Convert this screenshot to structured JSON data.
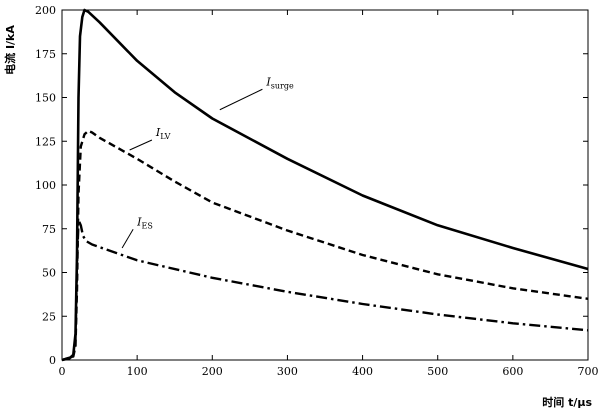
{
  "chart_data": {
    "type": "line",
    "xlabel": "时间 t/μs",
    "ylabel": "电流 I/kA",
    "xlim": [
      0,
      700
    ],
    "ylim": [
      0,
      200
    ],
    "xticks": [
      0,
      100,
      200,
      300,
      400,
      500,
      600,
      700
    ],
    "yticks": [
      0,
      25,
      50,
      75,
      100,
      125,
      150,
      175,
      200
    ],
    "grid": false,
    "legend": "none",
    "series": [
      {
        "name": "I_surge",
        "label_main": "I",
        "label_sub": "surge",
        "line_style": "solid",
        "color": "#000000",
        "x": [
          0,
          10,
          15,
          18,
          20,
          22,
          24,
          27,
          30,
          35,
          50,
          100,
          150,
          200,
          300,
          400,
          500,
          600,
          700
        ],
        "y": [
          0,
          1,
          3,
          15,
          60,
          150,
          185,
          196,
          200,
          199,
          193,
          171,
          153,
          138,
          115,
          94,
          77,
          64,
          52
        ]
      },
      {
        "name": "I_LV",
        "label_main": "I",
        "label_sub": "LV",
        "line_style": "dashed",
        "color": "#000000",
        "x": [
          0,
          15,
          18,
          20,
          22,
          25,
          30,
          35,
          40,
          50,
          100,
          150,
          200,
          300,
          400,
          500,
          600,
          700
        ],
        "y": [
          0,
          2,
          8,
          40,
          95,
          122,
          129,
          131,
          130,
          127,
          115,
          102,
          90,
          74,
          60,
          49,
          41,
          35
        ]
      },
      {
        "name": "I_ES",
        "label_main": "I",
        "label_sub": "ES",
        "line_style": "dashdot",
        "color": "#000000",
        "x": [
          0,
          15,
          18,
          20,
          22,
          25,
          28,
          32,
          40,
          60,
          100,
          200,
          300,
          400,
          500,
          600,
          700
        ],
        "y": [
          0,
          2,
          12,
          55,
          80,
          77,
          71,
          68,
          66,
          63,
          57,
          47,
          39,
          32,
          26,
          21,
          17
        ]
      }
    ],
    "annotations": [
      {
        "series": "I_surge",
        "label_at": [
          272,
          157
        ],
        "arrow_to": [
          210,
          143
        ]
      },
      {
        "series": "I_LV",
        "label_at": [
          125,
          128
        ],
        "arrow_to": [
          90,
          120
        ]
      },
      {
        "series": "I_ES",
        "label_at": [
          100,
          77
        ],
        "arrow_to": [
          80,
          64
        ]
      }
    ]
  }
}
